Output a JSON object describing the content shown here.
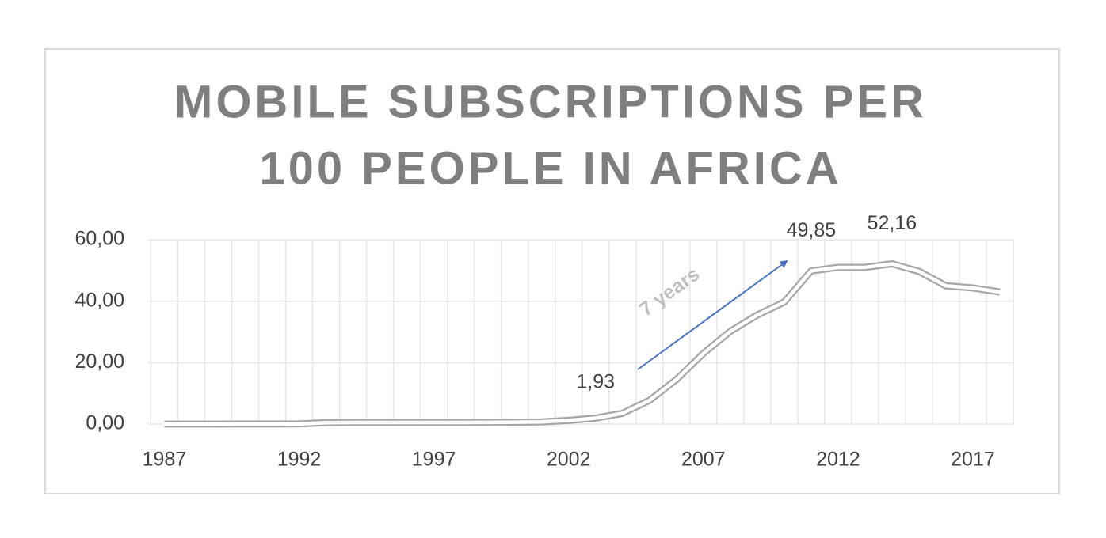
{
  "chart_data": {
    "type": "line",
    "title": [
      "MOBILE SUBSCRIPTIONS PER",
      "100 PEOPLE IN AFRICA"
    ],
    "x": [
      1987,
      1988,
      1989,
      1990,
      1991,
      1992,
      1993,
      1994,
      1995,
      1996,
      1997,
      1998,
      1999,
      2000,
      2001,
      2002,
      2003,
      2004,
      2005,
      2006,
      2007,
      2008,
      2009,
      2010,
      2011,
      2012,
      2013,
      2014,
      2015,
      2016,
      2017,
      2018
    ],
    "series": [
      {
        "color": "#a6a6a6",
        "values": [
          0.0,
          0.01,
          0.01,
          0.02,
          0.03,
          0.05,
          0.45,
          0.5,
          0.5,
          0.5,
          0.5,
          0.5,
          0.55,
          0.6,
          0.7,
          1.2,
          1.93,
          3.5,
          7.7,
          14.5,
          23.0,
          30.2,
          35.5,
          39.7,
          49.85,
          51.0,
          51.0,
          52.16,
          49.7,
          45.0,
          44.3,
          43.0
        ],
        "value_labels": [
          null,
          null,
          null,
          null,
          null,
          null,
          null,
          null,
          null,
          null,
          null,
          null,
          null,
          null,
          null,
          null,
          "1,93",
          null,
          null,
          null,
          null,
          null,
          null,
          null,
          "49,85",
          null,
          null,
          "52,16",
          null,
          null,
          null,
          null
        ]
      }
    ],
    "xlim": [
      1986.4,
      2018.5
    ],
    "xticks": [
      1987,
      1992,
      1997,
      2002,
      2007,
      2012,
      2017
    ],
    "ylim": [
      0,
      60
    ],
    "yticks": [
      {
        "value": 0,
        "label": "0,00"
      },
      {
        "value": 20,
        "label": "20,00"
      },
      {
        "value": 40,
        "label": "40,00"
      },
      {
        "value": 60,
        "label": "60,00"
      }
    ],
    "grid": true,
    "annotation": "7 years"
  }
}
